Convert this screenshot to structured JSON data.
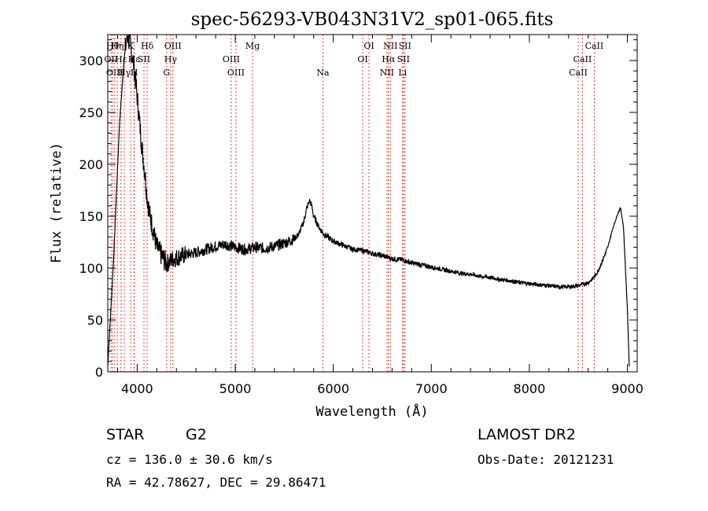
{
  "chart_data": {
    "type": "line",
    "title": "spec-56293-VB043N31V2_sp01-065.fits",
    "xlabel": "Wavelength (Å)",
    "ylabel": "Flux (relative)",
    "xlim": [
      3700,
      9100
    ],
    "ylim": [
      0,
      325
    ],
    "x_ticks": [
      4000,
      5000,
      6000,
      7000,
      8000,
      9000
    ],
    "y_ticks": [
      0,
      50,
      100,
      150,
      200,
      250,
      300
    ],
    "grid": false,
    "series": [
      {
        "x": [
          3700,
          3760,
          3820,
          3870,
          3900,
          3930,
          3960,
          3990,
          4020,
          4050,
          4080,
          4100,
          4130,
          4160,
          4200,
          4250,
          4300,
          4350,
          4400,
          4500,
          4600,
          4700,
          4800,
          4900,
          5000,
          5100,
          5200,
          5300,
          5400,
          5500,
          5600,
          5650,
          5700,
          5730,
          5760,
          5780,
          5800,
          5850,
          5900,
          6000,
          6100,
          6200,
          6300,
          6400,
          6500,
          6600,
          6700,
          6800,
          6900,
          7000,
          7100,
          7200,
          7300,
          7400,
          7500,
          7600,
          7700,
          7800,
          7900,
          8000,
          8100,
          8200,
          8300,
          8400,
          8500,
          8600,
          8650,
          8700,
          8750,
          8800,
          8850,
          8900,
          8930,
          8960,
          9000,
          9020
        ],
        "y": [
          5,
          110,
          240,
          305,
          325,
          315,
          300,
          275,
          245,
          215,
          190,
          170,
          150,
          138,
          120,
          112,
          104,
          108,
          110,
          113,
          115,
          118,
          121,
          123,
          120,
          118,
          120,
          119,
          121,
          124,
          128,
          133,
          145,
          158,
          165,
          160,
          150,
          140,
          133,
          126,
          122,
          118,
          117,
          114,
          112,
          109,
          108,
          105,
          103,
          101,
          99,
          97,
          95,
          94,
          92,
          91,
          89,
          88,
          86,
          85,
          84,
          83,
          82,
          82,
          83,
          86,
          90,
          97,
          108,
          120,
          138,
          152,
          158,
          140,
          60,
          2
        ]
      }
    ],
    "lines": [
      {
        "x": 3734,
        "tier": 1,
        "label": "OII"
      },
      {
        "x": 3750,
        "tier": 0,
        "label": "Hθ"
      },
      {
        "x": 3771,
        "tier": 2,
        "label": "OIII"
      },
      {
        "x": 3798,
        "tier": 0,
        "label": "Hη"
      },
      {
        "x": 3835,
        "tier": 1,
        "label": "Hε"
      },
      {
        "x": 3869,
        "tier": 2,
        "label": "Hγ"
      },
      {
        "x": 3934,
        "tier": 0,
        "label": "K"
      },
      {
        "x": 3968,
        "tier": 1,
        "label": "Hε"
      },
      {
        "x": 3970,
        "tier": 2,
        "label": "H"
      },
      {
        "x": 4069,
        "tier": 1,
        "label": "SII"
      },
      {
        "x": 4102,
        "tier": 0,
        "label": "Hδ"
      },
      {
        "x": 4300,
        "tier": 2,
        "label": "G"
      },
      {
        "x": 4341,
        "tier": 1,
        "label": "Hγ"
      },
      {
        "x": 4364,
        "tier": 0,
        "label": "OIII"
      },
      {
        "x": 4959,
        "tier": 1,
        "label": "OIII"
      },
      {
        "x": 5007,
        "tier": 2,
        "label": "OIII"
      },
      {
        "x": 5177,
        "tier": 0,
        "label": "Mg"
      },
      {
        "x": 5894,
        "tier": 2,
        "label": "Na"
      },
      {
        "x": 6300,
        "tier": 1,
        "label": "OI"
      },
      {
        "x": 6364,
        "tier": 0,
        "label": "OI"
      },
      {
        "x": 6548,
        "tier": 2,
        "label": "NII"
      },
      {
        "x": 6563,
        "tier": 1,
        "label": "Hα"
      },
      {
        "x": 6583,
        "tier": 0,
        "label": "NII"
      },
      {
        "x": 6707,
        "tier": 2,
        "label": "Li"
      },
      {
        "x": 6716,
        "tier": 1,
        "label": "SII"
      },
      {
        "x": 6731,
        "tier": 0,
        "label": "SII"
      },
      {
        "x": 8498,
        "tier": 2,
        "label": "CaII"
      },
      {
        "x": 8542,
        "tier": 1,
        "label": "CaII"
      },
      {
        "x": 8662,
        "tier": 0,
        "label": "CaII"
      }
    ]
  },
  "info": {
    "object_class": "STAR",
    "subclass": "G2",
    "survey": "LAMOST  DR2",
    "cz": "cz = 136.0 ± 30.6 km/s",
    "obs_date": "Obs-Date: 20121231",
    "coords": "RA =  42.78627, DEC =  29.86471"
  },
  "colors": {
    "axis": "#000000",
    "spectrum": "#000000",
    "line_marker": "#e00000",
    "background": "#ffffff"
  }
}
